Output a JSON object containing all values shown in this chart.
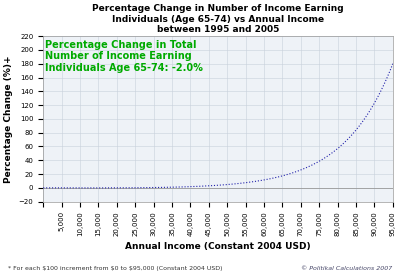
{
  "title": "Percentage Change in Number of Income Earning\nIndividuals (Age 65-74) vs Annual Income\nbetween 1995 and 2005",
  "xlabel": "Annual Income (Constant 2004 USD)",
  "ylabel": "Percentage Change (%)+",
  "annotation": "Percentage Change in Total\nNumber of Income Earning\nIndividuals Age 65-74: -2.0%",
  "annotation_color": "#00aa00",
  "footnote_left": "* For each $100 increment from $0 to $95,000 (Constant 2004 USD)",
  "footnote_right": "© Politikal Calculations 2007",
  "xlim": [
    0,
    95000
  ],
  "ylim": [
    -20,
    220
  ],
  "yticks": [
    -20,
    0,
    20,
    40,
    60,
    80,
    100,
    120,
    140,
    160,
    180,
    200,
    220
  ],
  "xtick_step": 5000,
  "line_color": "#2222aa",
  "bg_color": "#ffffff",
  "plot_bg_color": "#eef2f7",
  "grid_color": "#c8d0dc",
  "title_fontsize": 6.5,
  "axis_label_fontsize": 6.5,
  "tick_fontsize": 5.0,
  "annotation_fontsize": 7.0,
  "footnote_fontsize": 4.5,
  "zero_line_color": "#999999"
}
